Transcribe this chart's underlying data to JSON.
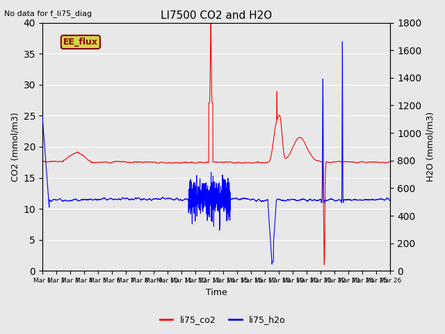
{
  "title": "LI7500 CO2 and H2O",
  "top_left_text": "No data for f_li75_diag",
  "annotation_text": "EE_flux",
  "xlabel": "Time",
  "ylabel_left": "CO2 (mmol/m3)",
  "ylabel_right": "H2O (mmol/m3)",
  "ylim_left": [
    0,
    40
  ],
  "ylim_right": [
    0,
    1800
  ],
  "yticks_left": [
    0,
    5,
    10,
    15,
    20,
    25,
    30,
    35,
    40
  ],
  "yticks_right": [
    0,
    200,
    400,
    600,
    800,
    1000,
    1200,
    1400,
    1600,
    1800
  ],
  "bg_color": "#e8e8e8",
  "grid_color": "white",
  "legend_labels": [
    "li75_co2",
    "li75_h2o"
  ],
  "legend_colors": [
    "red",
    "blue"
  ],
  "annotation_bg": "#d4d44a",
  "annotation_border": "#8b0000",
  "line_width": 0.8,
  "n_points": 3000,
  "figsize": [
    6.4,
    4.8
  ],
  "dpi": 100
}
